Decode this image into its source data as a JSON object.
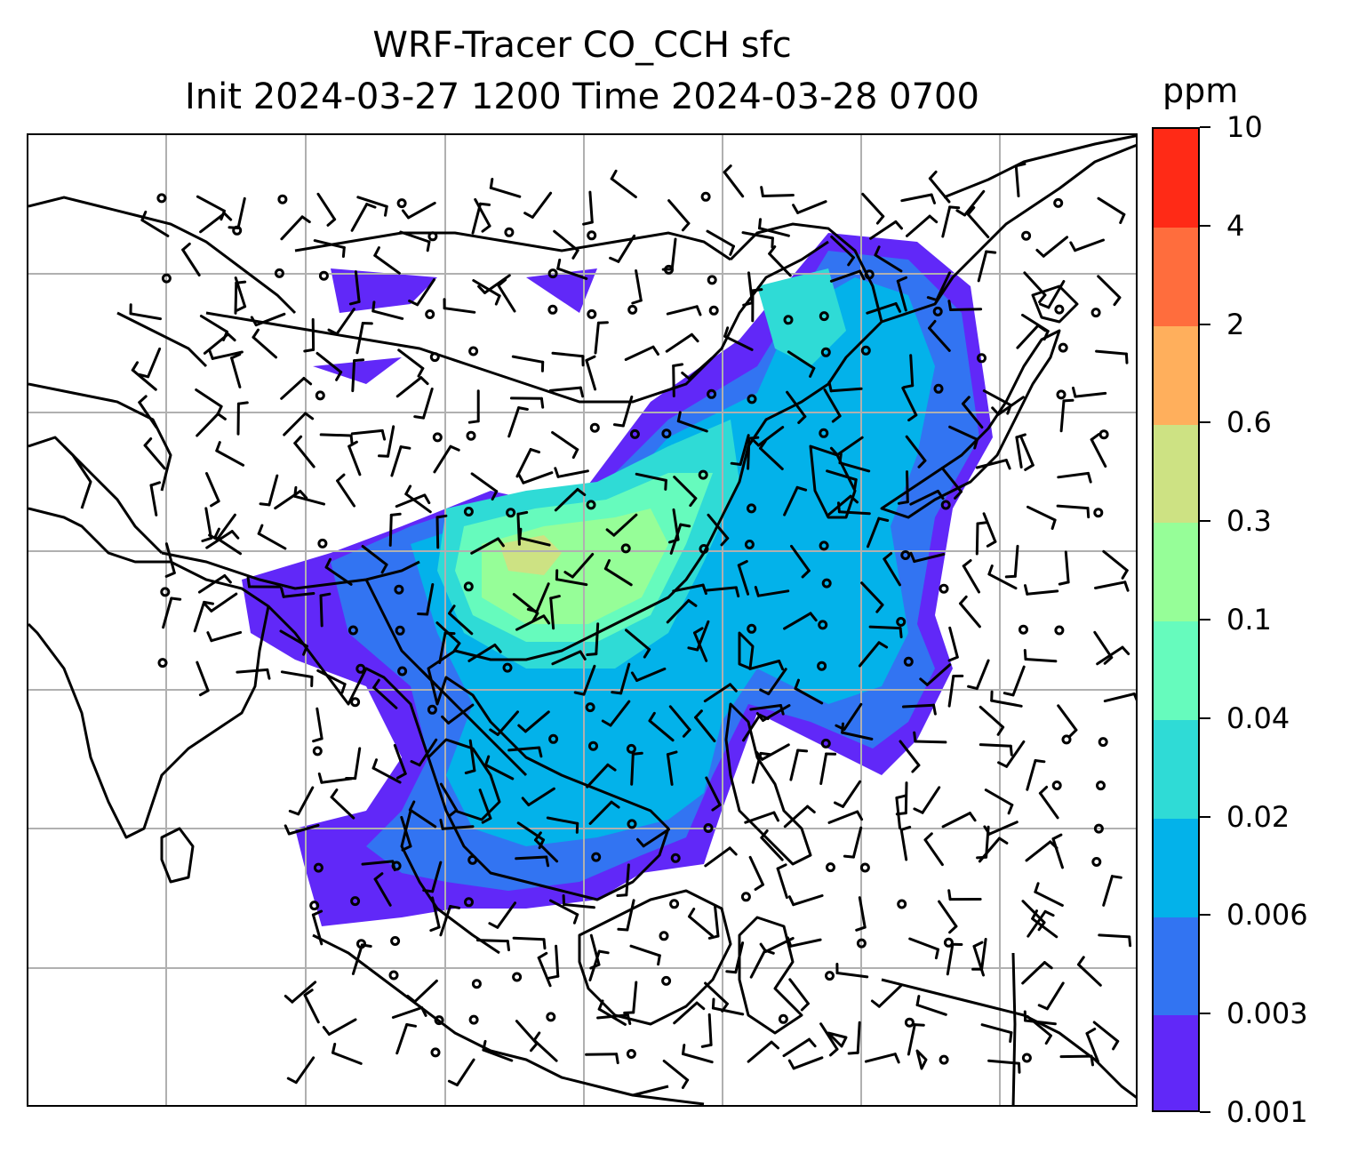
{
  "title": {
    "line1": "WRF-Tracer CO_CCH sfc",
    "line2": "Init 2024-03-27 1200 Time 2024-03-28 0700"
  },
  "colorbar": {
    "unit": "ppm",
    "ticks": [
      "0.001",
      "0.003",
      "0.006",
      "0.02",
      "0.04",
      "0.1",
      "0.3",
      "0.6",
      "2",
      "4",
      "10"
    ],
    "colors": [
      "#6128f8",
      "#3274f2",
      "#03b2ea",
      "#2fdbd6",
      "#66fbbd",
      "#96fe98",
      "#cde283",
      "#ffaf5c",
      "#ff6d3d",
      "#ff2a16"
    ]
  },
  "map": {
    "features": [
      "coastlines",
      "country-borders",
      "lat-lon-gridlines",
      "wind-barbs",
      "calm-wind-circles",
      "tracer-concentration-fill"
    ],
    "gridlines": true,
    "plume_levels": [
      "0.001",
      "0.003",
      "0.006",
      "0.02",
      "0.04",
      "0.1",
      "0.3"
    ]
  }
}
